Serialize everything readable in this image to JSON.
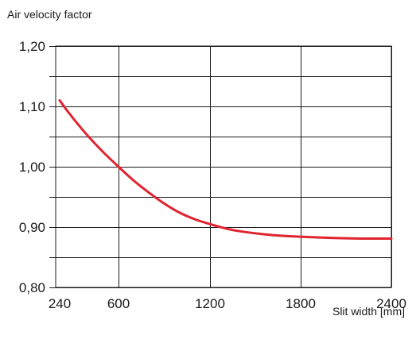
{
  "chart_data": {
    "type": "line",
    "title": "",
    "ylabel": "Air velocity factor",
    "xlabel": "Slit width [mm]",
    "xlim": [
      240,
      2400
    ],
    "ylim": [
      0.8,
      1.2
    ],
    "x_ticks": [
      240,
      600,
      1200,
      1800,
      2400
    ],
    "x_tick_labels": [
      "240",
      "600",
      "1200",
      "1800",
      "2400"
    ],
    "y_ticks": [
      0.8,
      0.9,
      1.0,
      1.1,
      1.2
    ],
    "y_tick_labels": [
      "0,80",
      "0,90",
      "1,00",
      "1,10",
      "1,20"
    ],
    "y_minor_gridlines": [
      0.85,
      0.95,
      1.05,
      1.15
    ],
    "grid": true,
    "series": [
      {
        "color": "#e0232e",
        "x": [
          240,
          300,
          400,
          500,
          600,
          700,
          800,
          900,
          1000,
          1100,
          1200,
          1300,
          1400,
          1600,
          1800,
          2000,
          2200,
          2400
        ],
        "y": [
          1.11,
          1.088,
          1.055,
          1.026,
          1.0,
          0.977,
          0.957,
          0.939,
          0.924,
          0.913,
          0.905,
          0.898,
          0.893,
          0.887,
          0.884,
          0.882,
          0.881,
          0.881
        ]
      }
    ]
  }
}
